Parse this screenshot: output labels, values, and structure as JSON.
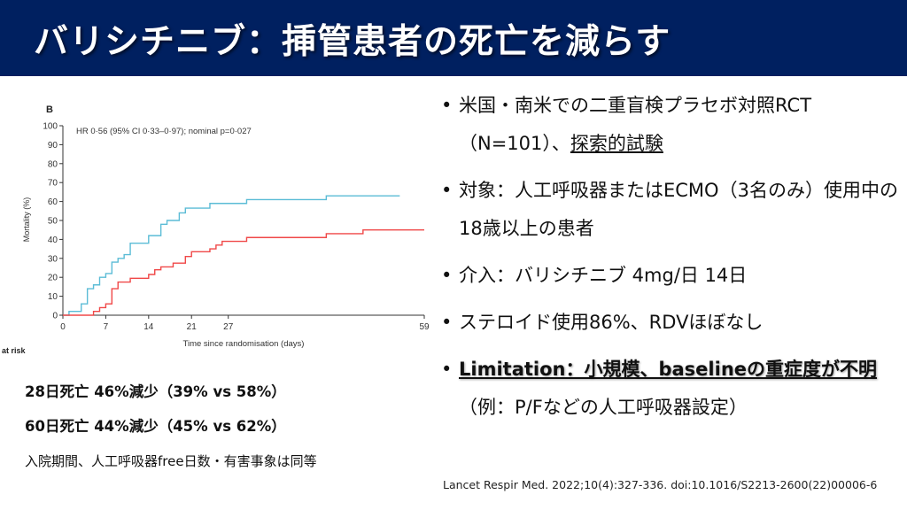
{
  "slide": {
    "title": "バリシチニブ：挿管患者の死亡を減らす",
    "bullets": [
      {
        "parts": [
          {
            "text": "米国・南米での二重盲検プラセボ対照RCT（N=101）、"
          },
          {
            "text": "探索的試験",
            "style": "underline"
          }
        ]
      },
      {
        "parts": [
          {
            "text": "対象：人工呼吸器またはECMO（3名のみ）使用中の18歳以上の患者"
          }
        ]
      },
      {
        "parts": [
          {
            "text": "介入：バリシチニブ 4mg/日 14日"
          }
        ]
      },
      {
        "parts": [
          {
            "text": "ステロイド使用86%、RDVほぼなし"
          }
        ]
      },
      {
        "parts": [
          {
            "text": "Limitation：小規模、baselineの重症度が不明",
            "style": "bold-underline"
          },
          {
            "text": "（例：P/Fなどの人工呼吸器設定）"
          }
        ]
      }
    ],
    "summary": [
      "28日死亡 46%減少（39% vs 58%）",
      "60日死亡 44%減少（45% vs 62%）",
      "入院期間、人工呼吸器free日数・有害事象は同等"
    ],
    "citation": "Lancet Respir Med. 2022;10(4):327-336. doi:10.1016/S2213-2600(22)00006-6",
    "colors": {
      "title_bar": "#002060",
      "title_text": "#ffffff"
    }
  },
  "chart_data": {
    "type": "line",
    "step": true,
    "panel_label": "B",
    "annotation": "HR 0·56 (95% CI 0·33–0·97); nominal p=0·027",
    "xlabel": "Time since randomisation (days)",
    "ylabel": "Mortality (%)",
    "xlim": [
      0,
      59
    ],
    "ylim": [
      0,
      100
    ],
    "xticks": [
      "0",
      "7",
      "14",
      "21",
      "27",
      "59"
    ],
    "yticks": [
      "0",
      "10",
      "20",
      "30",
      "40",
      "50",
      "60",
      "70",
      "80",
      "90",
      "100"
    ],
    "truncated_label": "at risk",
    "grid": false,
    "series": [
      {
        "color": "#5bbcd6",
        "x": [
          0,
          1,
          3,
          4,
          5,
          6,
          7,
          8,
          9,
          10,
          11,
          14,
          16,
          17,
          19,
          20,
          24,
          30,
          43,
          55
        ],
        "y": [
          0,
          2,
          6,
          14,
          16,
          20,
          22,
          28,
          30,
          32,
          38,
          42,
          48,
          50,
          54,
          56.5,
          59,
          61,
          63,
          63
        ]
      },
      {
        "color": "#f04848",
        "x": [
          0,
          5,
          6,
          7,
          8,
          9,
          11,
          14,
          15,
          16,
          18,
          20,
          21,
          24,
          25,
          26,
          30,
          43,
          49,
          59
        ],
        "y": [
          0,
          2,
          4,
          6,
          14,
          17.5,
          19.5,
          21.5,
          24,
          25.5,
          27.5,
          31,
          33.5,
          35,
          37,
          39,
          41,
          43,
          45,
          45
        ]
      }
    ]
  }
}
